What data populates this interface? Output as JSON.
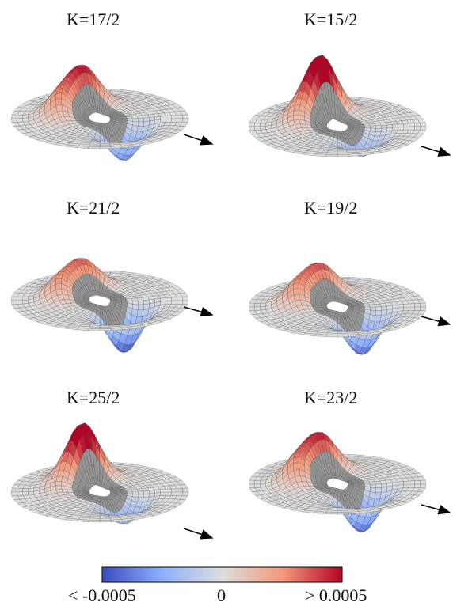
{
  "panels": [
    {
      "label": "K=17/2",
      "peak": 1.05,
      "dip": 0.75,
      "extraPeak": 0.75
    },
    {
      "label": "K=15/2",
      "peak": 1.55,
      "dip": 0.45,
      "extraPeak": 0.4
    },
    {
      "label": "K=21/2",
      "peak": 0.75,
      "dip": 1.0,
      "extraPeak": 0.65
    },
    {
      "label": "K=19/2",
      "peak": 0.8,
      "dip": 0.9,
      "extraPeak": 0.7
    },
    {
      "label": "K=25/2",
      "peak": 1.5,
      "dip": 0.5,
      "extraPeak": 0.2
    },
    {
      "label": "K=23/2",
      "peak": 1.0,
      "dip": 0.9,
      "extraPeak": 0.8
    }
  ],
  "colorbar": {
    "min_label": "< -0.0005",
    "mid_label": "0",
    "max_label": "> 0.0005",
    "colors": [
      "#3b4cc0",
      "#dddddd",
      "#b40426"
    ]
  }
}
